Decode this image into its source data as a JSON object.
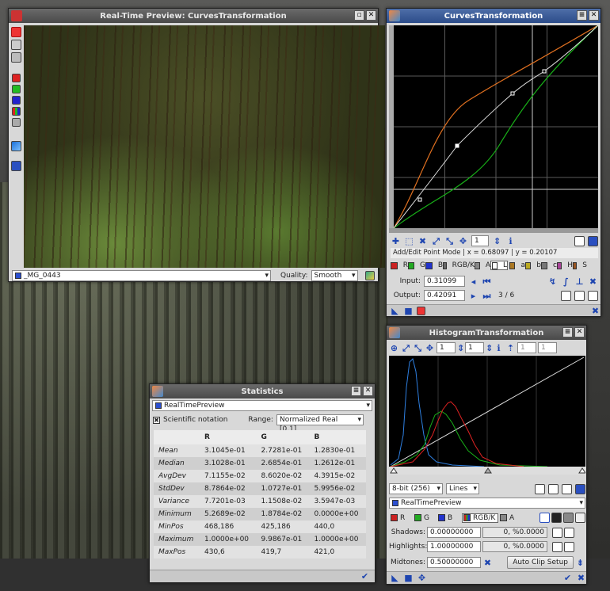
{
  "preview": {
    "title": "Real-Time Preview: CurvesTransformation",
    "image_name": "_MG_0443",
    "quality_label": "Quality:",
    "quality_value": "Smooth"
  },
  "curves": {
    "title": "CurvesTransformation",
    "point_count_field": "1",
    "status": "Add/Edit Point Mode | x = 0.68097 | y = 0.20107",
    "channels": [
      {
        "label": "R",
        "color": "#cc2222"
      },
      {
        "label": "G",
        "color": "#22aa22"
      },
      {
        "label": "B",
        "color": "#2233cc"
      },
      {
        "label": "RGB/K",
        "color": "#666666"
      },
      {
        "label": "A",
        "color": "#888888"
      },
      {
        "label": "L",
        "color": "#ffffff"
      },
      {
        "label": "a",
        "color": "#aa7722"
      },
      {
        "label": "b",
        "color": "#bbaa22"
      },
      {
        "label": "c",
        "color": "#777777"
      },
      {
        "label": "H",
        "color": "#aa4499"
      },
      {
        "label": "S",
        "color": "#995522"
      }
    ],
    "input_label": "Input:",
    "input_value": "0.31099",
    "output_label": "Output:",
    "output_value": "0.42091",
    "point_index": "3 / 6"
  },
  "histogram": {
    "title": "HistogramTransformation",
    "zoom_h": "1",
    "zoom_v": "1",
    "zoom_h2": "1",
    "zoom_v2": "1",
    "depth": "8-bit (256)",
    "graph_style": "Lines",
    "view": "RealTimePreview",
    "channels": [
      {
        "label": "R",
        "color": "#cc2222"
      },
      {
        "label": "G",
        "color": "#22aa22"
      },
      {
        "label": "B",
        "color": "#2233cc"
      },
      {
        "label": "RGB/K",
        "color": "#666666"
      },
      {
        "label": "A",
        "color": "#888888"
      }
    ],
    "shadows_label": "Shadows:",
    "shadows_value": "0.00000000",
    "shadows_clip": "0, %0.0000",
    "highlights_label": "Highlights:",
    "highlights_value": "1.00000000",
    "highlights_clip": "0, %0.0000",
    "midtones_label": "Midtones:",
    "midtones_value": "0.50000000",
    "auto_clip": "Auto Clip Setup"
  },
  "statistics": {
    "title": "Statistics",
    "view": "RealTimePreview",
    "scientific_label": "Scientific notation",
    "range_label": "Range:",
    "range_value": "Normalized Real [0,1]",
    "columns": [
      "R",
      "G",
      "B"
    ],
    "rows": [
      {
        "label": "Mean",
        "values": [
          "3.1045e-01",
          "2.7281e-01",
          "1.2830e-01"
        ]
      },
      {
        "label": "Median",
        "values": [
          "3.1028e-01",
          "2.6854e-01",
          "1.2612e-01"
        ]
      },
      {
        "label": "AvgDev",
        "values": [
          "7.1155e-02",
          "8.6020e-02",
          "4.3915e-02"
        ]
      },
      {
        "label": "StdDev",
        "values": [
          "8.7864e-02",
          "1.0727e-01",
          "5.9956e-02"
        ]
      },
      {
        "label": "Variance",
        "values": [
          "7.7201e-03",
          "1.1508e-02",
          "3.5947e-03"
        ]
      },
      {
        "label": "Minimum",
        "values": [
          "5.2689e-02",
          "1.8784e-02",
          "0.0000e+00"
        ]
      },
      {
        "label": "MinPos",
        "values": [
          "468,186",
          "425,186",
          "440,0"
        ]
      },
      {
        "label": "Maximum",
        "values": [
          "1.0000e+00",
          "9.9867e-01",
          "1.0000e+00"
        ]
      },
      {
        "label": "MaxPos",
        "values": [
          "430,6",
          "419,7",
          "421,0"
        ]
      }
    ]
  },
  "colors": {
    "titlebar_active": "#2c4c8a",
    "panel": "#d8d8d8",
    "graph_bg": "#000000"
  }
}
